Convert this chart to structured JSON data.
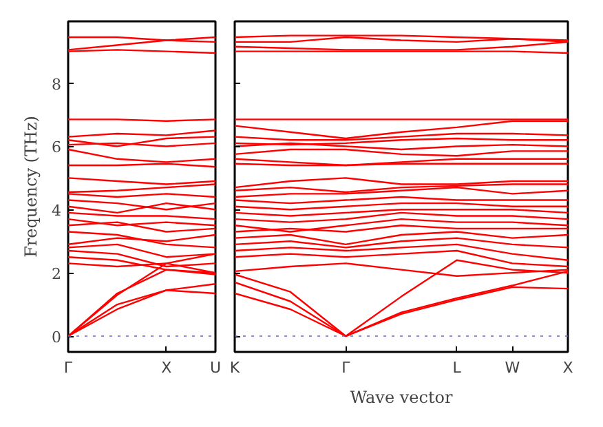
{
  "chart_data": [
    {
      "type": "line",
      "ylabel": "Frequency (THz)",
      "categories": [
        "Γ",
        null,
        "X",
        "U"
      ],
      "ylim": [
        -0.5,
        9.95
      ],
      "yticks": [
        0,
        2,
        4,
        6,
        8
      ],
      "grid": false,
      "line_style": "solid",
      "ref_lines": [
        {
          "axis": "y",
          "value": 0,
          "label": null,
          "color": "#6666cc",
          "line_style": "dotted"
        }
      ],
      "series": [
        {
          "color": "#ff0000",
          "values": [
            0,
            0.85,
            1.45,
            1.65
          ]
        },
        {
          "color": "#ff0000",
          "values": [
            0,
            1.0,
            1.45,
            1.35
          ]
        },
        {
          "color": "#ff0000",
          "values": [
            0,
            1.35,
            2.1,
            2.0
          ]
        },
        {
          "color": "#ff0000",
          "values": [
            0,
            1.3,
            2.3,
            2.6
          ]
        },
        {
          "color": "#ff0000",
          "values": [
            2.3,
            2.2,
            2.3,
            2.0
          ]
        },
        {
          "color": "#ff0000",
          "values": [
            2.5,
            2.4,
            2.1,
            1.95
          ]
        },
        {
          "color": "#ff0000",
          "values": [
            2.7,
            2.6,
            2.2,
            2.3
          ]
        },
        {
          "color": "#ff0000",
          "values": [
            2.8,
            2.9,
            2.5,
            2.6
          ]
        },
        {
          "color": "#ff0000",
          "values": [
            2.9,
            3.1,
            3.0,
            3.2
          ]
        },
        {
          "color": "#ff0000",
          "values": [
            3.3,
            3.2,
            2.9,
            2.8
          ]
        },
        {
          "color": "#ff0000",
          "values": [
            3.5,
            3.6,
            3.3,
            3.4
          ]
        },
        {
          "color": "#ff0000",
          "values": [
            3.7,
            3.5,
            3.6,
            3.5
          ]
        },
        {
          "color": "#ff0000",
          "values": [
            3.9,
            3.8,
            3.8,
            3.7
          ]
        },
        {
          "color": "#ff0000",
          "values": [
            4.1,
            3.9,
            4.2,
            4.0
          ]
        },
        {
          "color": "#ff0000",
          "values": [
            4.3,
            4.2,
            4.0,
            4.2
          ]
        },
        {
          "color": "#ff0000",
          "values": [
            4.5,
            4.4,
            4.5,
            4.4
          ]
        },
        {
          "color": "#ff0000",
          "values": [
            4.55,
            4.6,
            4.7,
            4.8
          ]
        },
        {
          "color": "#ff0000",
          "values": [
            5.0,
            4.9,
            4.8,
            4.9
          ]
        },
        {
          "color": "#ff0000",
          "values": [
            5.4,
            5.4,
            5.45,
            5.35
          ]
        },
        {
          "color": "#ff0000",
          "values": [
            5.9,
            5.6,
            5.5,
            5.6
          ]
        },
        {
          "color": "#ff0000",
          "values": [
            6.05,
            6.1,
            6.0,
            6.1
          ]
        },
        {
          "color": "#ff0000",
          "values": [
            6.2,
            6.0,
            6.25,
            6.3
          ]
        },
        {
          "color": "#ff0000",
          "values": [
            6.3,
            6.4,
            6.35,
            6.5
          ]
        },
        {
          "color": "#ff0000",
          "values": [
            6.85,
            6.85,
            6.8,
            6.85
          ]
        },
        {
          "color": "#ff0000",
          "values": [
            9.0,
            9.05,
            9.0,
            8.95
          ]
        },
        {
          "color": "#ff0000",
          "values": [
            9.05,
            9.2,
            9.35,
            9.3
          ]
        },
        {
          "color": "#ff0000",
          "values": [
            9.45,
            9.45,
            9.35,
            9.45
          ]
        }
      ]
    },
    {
      "type": "line",
      "xlabel": "Wave vector",
      "categories": [
        "K",
        null,
        "Γ",
        null,
        "L",
        "W",
        "X"
      ],
      "ylim": [
        -0.5,
        9.95
      ],
      "yticks": [
        0,
        2,
        4,
        6,
        8
      ],
      "tick_labels": "x",
      "grid": false,
      "line_style": "solid",
      "ref_lines": [
        {
          "axis": "y",
          "value": 0,
          "label": null,
          "color": "#6666cc",
          "line_style": "dotted"
        }
      ],
      "series": [
        {
          "color": "#ff0000",
          "values": [
            1.35,
            0.85,
            0,
            0.7,
            1.15,
            1.55,
            1.5
          ]
        },
        {
          "color": "#ff0000",
          "values": [
            1.7,
            1.1,
            0,
            0.75,
            1.2,
            1.6,
            2.05
          ]
        },
        {
          "color": "#ff0000",
          "values": [
            1.95,
            1.4,
            0,
            1.25,
            2.4,
            2.1,
            2.0
          ]
        },
        {
          "color": "#ff0000",
          "values": [
            2.05,
            2.2,
            2.3,
            2.1,
            1.9,
            2.0,
            2.1
          ]
        },
        {
          "color": "#ff0000",
          "values": [
            2.5,
            2.6,
            2.5,
            2.6,
            2.7,
            2.3,
            2.2
          ]
        },
        {
          "color": "#ff0000",
          "values": [
            2.7,
            2.8,
            2.7,
            2.8,
            2.9,
            2.6,
            2.4
          ]
        },
        {
          "color": "#ff0000",
          "values": [
            2.9,
            3.0,
            2.8,
            3.0,
            3.1,
            2.9,
            2.8
          ]
        },
        {
          "color": "#ff0000",
          "values": [
            3.1,
            3.2,
            2.9,
            3.2,
            3.3,
            3.1,
            3.2
          ]
        },
        {
          "color": "#ff0000",
          "values": [
            3.3,
            3.4,
            3.3,
            3.5,
            3.4,
            3.4,
            3.4
          ]
        },
        {
          "color": "#ff0000",
          "values": [
            3.5,
            3.3,
            3.5,
            3.7,
            3.6,
            3.6,
            3.5
          ]
        },
        {
          "color": "#ff0000",
          "values": [
            3.7,
            3.6,
            3.7,
            3.9,
            3.8,
            3.8,
            3.7
          ]
        },
        {
          "color": "#ff0000",
          "values": [
            3.9,
            3.8,
            3.9,
            4.0,
            4.0,
            4.0,
            3.9
          ]
        },
        {
          "color": "#ff0000",
          "values": [
            4.1,
            4.0,
            4.1,
            4.2,
            4.2,
            4.1,
            4.1
          ]
        },
        {
          "color": "#ff0000",
          "values": [
            4.3,
            4.2,
            4.3,
            4.4,
            4.3,
            4.3,
            4.3
          ]
        },
        {
          "color": "#ff0000",
          "values": [
            4.4,
            4.5,
            4.5,
            4.6,
            4.7,
            4.5,
            4.6
          ]
        },
        {
          "color": "#ff0000",
          "values": [
            4.6,
            4.7,
            4.55,
            4.7,
            4.75,
            4.8,
            4.8
          ]
        },
        {
          "color": "#ff0000",
          "values": [
            4.7,
            4.9,
            5.0,
            4.8,
            4.8,
            4.9,
            4.9
          ]
        },
        {
          "color": "#ff0000",
          "values": [
            5.45,
            5.4,
            5.4,
            5.45,
            5.45,
            5.45,
            5.45
          ]
        },
        {
          "color": "#ff0000",
          "values": [
            5.6,
            5.5,
            5.4,
            5.5,
            5.6,
            5.6,
            5.6
          ]
        },
        {
          "color": "#ff0000",
          "values": [
            5.75,
            5.9,
            5.9,
            5.75,
            5.7,
            5.85,
            5.85
          ]
        },
        {
          "color": "#ff0000",
          "values": [
            6.0,
            6.1,
            6.0,
            5.9,
            6.0,
            6.05,
            6.0
          ]
        },
        {
          "color": "#ff0000",
          "values": [
            6.1,
            6.05,
            6.1,
            6.2,
            6.25,
            6.2,
            6.2
          ]
        },
        {
          "color": "#ff0000",
          "values": [
            6.3,
            6.2,
            6.2,
            6.3,
            6.4,
            6.4,
            6.35
          ]
        },
        {
          "color": "#ff0000",
          "values": [
            6.65,
            6.45,
            6.25,
            6.45,
            6.6,
            6.8,
            6.8
          ]
        },
        {
          "color": "#ff0000",
          "values": [
            6.85,
            6.85,
            6.85,
            6.85,
            6.85,
            6.85,
            6.85
          ]
        },
        {
          "color": "#ff0000",
          "values": [
            9.0,
            9.0,
            9.0,
            9.0,
            9.0,
            9.0,
            8.95
          ]
        },
        {
          "color": "#ff0000",
          "values": [
            9.15,
            9.1,
            9.05,
            9.05,
            9.05,
            9.15,
            9.3
          ]
        },
        {
          "color": "#ff0000",
          "values": [
            9.3,
            9.3,
            9.45,
            9.35,
            9.3,
            9.4,
            9.35
          ]
        },
        {
          "color": "#ff0000",
          "values": [
            9.45,
            9.5,
            9.5,
            9.5,
            9.45,
            9.4,
            9.3
          ]
        }
      ]
    }
  ]
}
